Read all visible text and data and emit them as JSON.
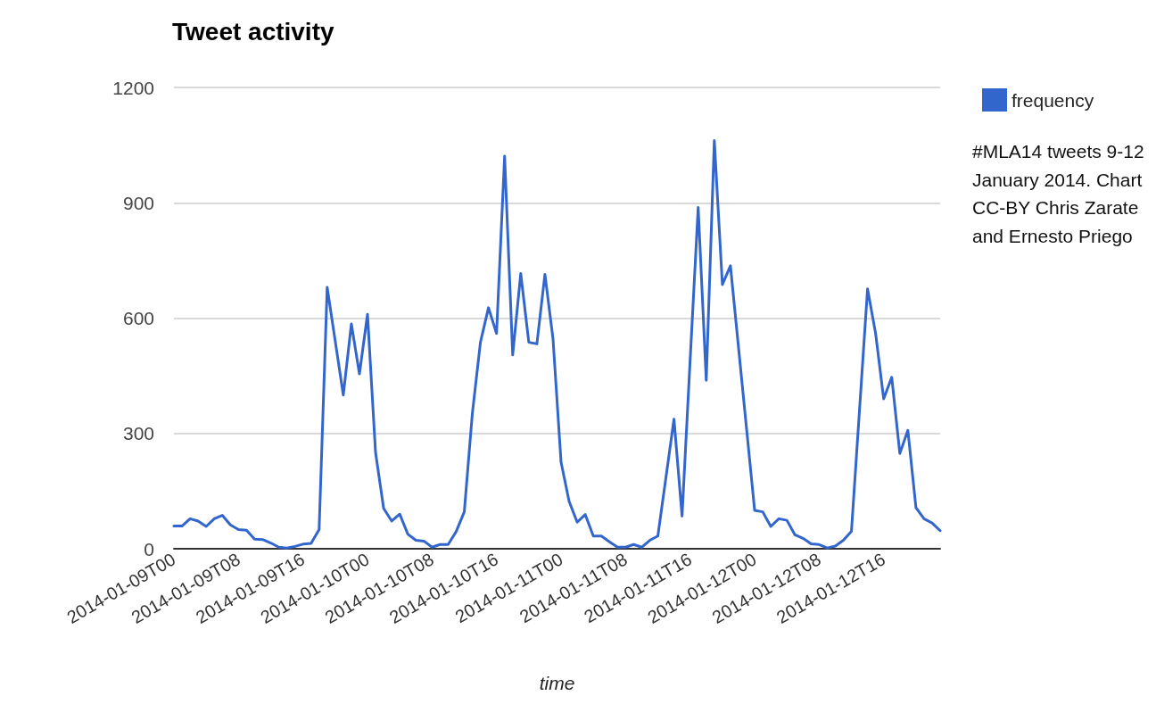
{
  "chart_data": {
    "type": "line",
    "title": "Tweet activity",
    "xlabel": "time",
    "categories": [
      "2014-01-09T00",
      null,
      null,
      null,
      null,
      null,
      null,
      null,
      "2014-01-09T08",
      null,
      null,
      null,
      null,
      null,
      null,
      null,
      "2014-01-09T16",
      null,
      null,
      null,
      null,
      null,
      null,
      null,
      "2014-01-10T00",
      null,
      null,
      null,
      null,
      null,
      null,
      null,
      "2014-01-10T08",
      null,
      null,
      null,
      null,
      null,
      null,
      null,
      "2014-01-10T16",
      null,
      null,
      null,
      null,
      null,
      null,
      null,
      "2014-01-11T00",
      null,
      null,
      null,
      null,
      null,
      null,
      null,
      "2014-01-11T08",
      null,
      null,
      null,
      null,
      null,
      null,
      null,
      "2014-01-11T16",
      null,
      null,
      null,
      null,
      null,
      null,
      null,
      "2014-01-12T00",
      null,
      null,
      null,
      null,
      null,
      null,
      null,
      "2014-01-12T08",
      null,
      null,
      null,
      null,
      null,
      null,
      null,
      "2014-01-12T16",
      null,
      null,
      null,
      null,
      null,
      null,
      null
    ],
    "series": [
      {
        "name": "frequency",
        "color": "#3366cc",
        "values": [
          59,
          59,
          78,
          72,
          58,
          78,
          87,
          62,
          50,
          48,
          25,
          24,
          15,
          4,
          2,
          6,
          12,
          14,
          50,
          680,
          540,
          400,
          585,
          455,
          610,
          250,
          105,
          72,
          90,
          38,
          22,
          20,
          4,
          11,
          11,
          45,
          96,
          352,
          537,
          627,
          560,
          1021,
          504,
          716,
          537,
          533,
          714,
          546,
          225,
          123,
          69,
          89,
          33,
          33,
          18,
          4,
          4,
          11,
          4,
          22,
          33,
          185,
          337,
          85,
          490,
          888,
          438,
          1062,
          687,
          736,
          524,
          312,
          100,
          96,
          58,
          78,
          74,
          36,
          27,
          13,
          11,
          2,
          7,
          22,
          45,
          360,
          676,
          560,
          390,
          446,
          248,
          308,
          107,
          78,
          67,
          47
        ]
      }
    ],
    "ylim": [
      0,
      1200
    ],
    "yticks": [
      0,
      300,
      600,
      900,
      1200
    ],
    "grid": "y",
    "legend": "right",
    "marker": "none",
    "line_style": "solid",
    "annotations": [
      "#MLA14 tweets 9-12 January 2014. Chart CC-BY Chris Zarate and Ernesto Priego"
    ]
  }
}
